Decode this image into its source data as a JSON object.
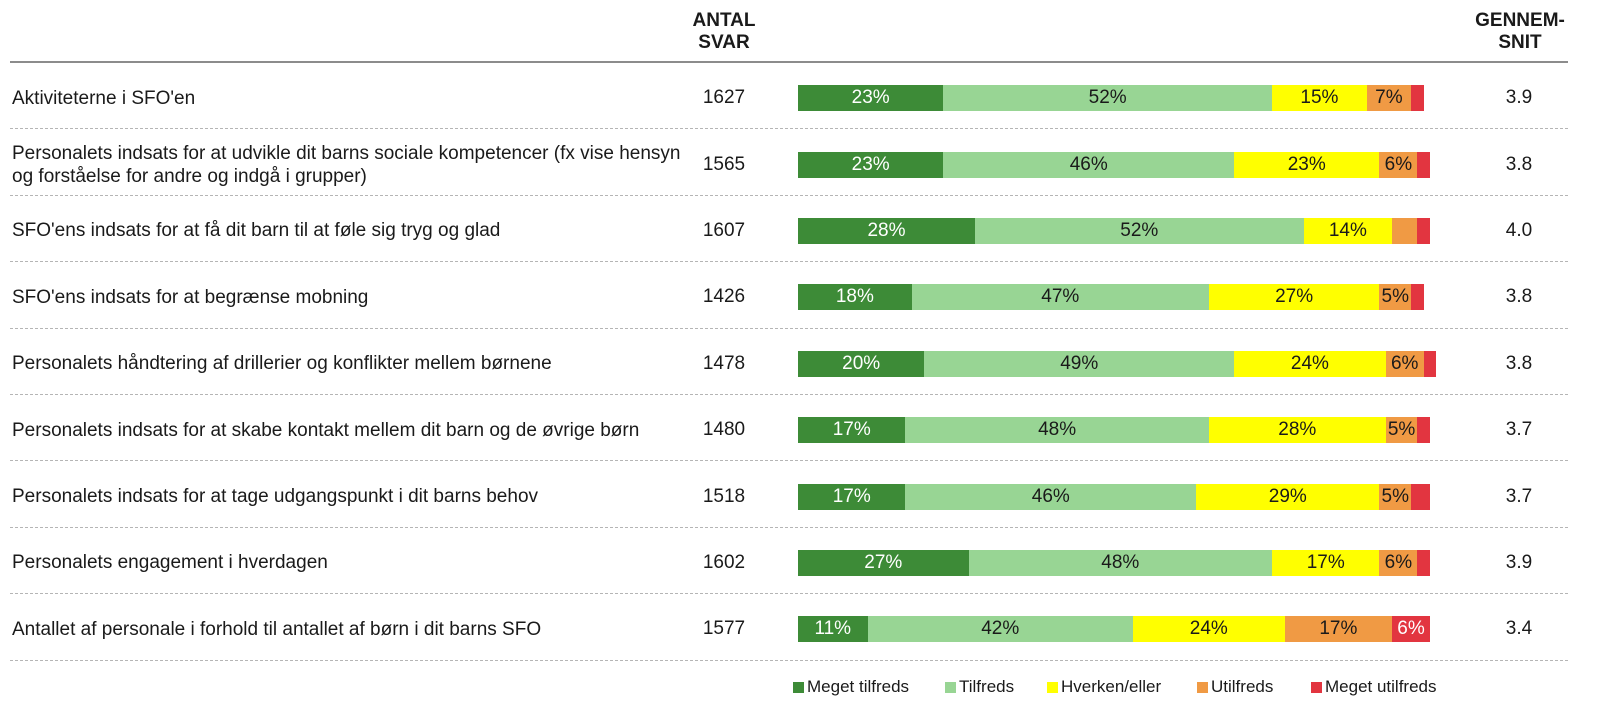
{
  "chart_data": {
    "type": "stacked-bar-table",
    "columns": {
      "count": "ANTAL SVAR",
      "average": "GENNEM-SNIT"
    },
    "categories": [
      "Aktiviteterne i SFO'en",
      "Personalets indsats for at udvikle dit barns sociale kompetencer (fx vise hensyn og forståelse for andre og indgå i grupper)",
      "SFO'ens indsats for at få dit barn til at føle sig tryg og glad",
      "SFO'ens indsats for at begrænse mobning",
      "Personalets håndtering af drillerier og konflikter mellem børnene",
      "Personalets indsats for at skabe kontakt mellem dit barn og de øvrige børn",
      "Personalets indsats for at tage udgangspunkt i dit barns behov",
      "Personalets engagement i hverdagen",
      "Antallet af personale i forhold til antallet af børn i dit barns SFO"
    ],
    "counts": [
      "1627",
      "1565",
      "1607",
      "1426",
      "1478",
      "1480",
      "1518",
      "1602",
      "1577"
    ],
    "averages": [
      "3.9",
      "3.8",
      "4.0",
      "3.8",
      "3.8",
      "3.7",
      "3.7",
      "3.9",
      "3.4"
    ],
    "xlim": [
      0,
      100
    ],
    "series": [
      {
        "name": "Meget tilfreds",
        "color": "#3d8b37",
        "label_color": "#ffffff",
        "values": [
          23,
          23,
          28,
          18,
          20,
          17,
          17,
          27,
          11
        ],
        "value_labels": [
          "23%",
          "23%",
          "28%",
          "18%",
          "20%",
          "17%",
          "17%",
          "27%",
          "11%"
        ]
      },
      {
        "name": "Tilfreds",
        "color": "#98d594",
        "label_color": "#1a1a1a",
        "values": [
          52,
          46,
          52,
          47,
          49,
          48,
          46,
          48,
          42
        ],
        "value_labels": [
          "52%",
          "46%",
          "52%",
          "47%",
          "49%",
          "48%",
          "46%",
          "48%",
          "42%"
        ]
      },
      {
        "name": "Hverken/eller",
        "color": "#ffff00",
        "label_color": "#1a1a1a",
        "values": [
          15,
          23,
          14,
          27,
          24,
          28,
          29,
          17,
          24
        ],
        "value_labels": [
          "15%",
          "23%",
          "14%",
          "27%",
          "24%",
          "28%",
          "29%",
          "17%",
          "24%"
        ]
      },
      {
        "name": "Utilfreds",
        "color": "#f09a44",
        "label_color": "#1a1a1a",
        "values": [
          7,
          6,
          4,
          5,
          6,
          5,
          5,
          6,
          17
        ],
        "value_labels": [
          "7%",
          "6%",
          null,
          "5%",
          "6%",
          "5%",
          "5%",
          "6%",
          "17%"
        ]
      },
      {
        "name": "Meget utilfreds",
        "color": "#e23540",
        "label_color": "#ffffff",
        "values": [
          2,
          2,
          2,
          2,
          2,
          2,
          3,
          2,
          6
        ],
        "value_labels": [
          null,
          null,
          null,
          null,
          null,
          null,
          null,
          null,
          "6%"
        ]
      }
    ]
  }
}
